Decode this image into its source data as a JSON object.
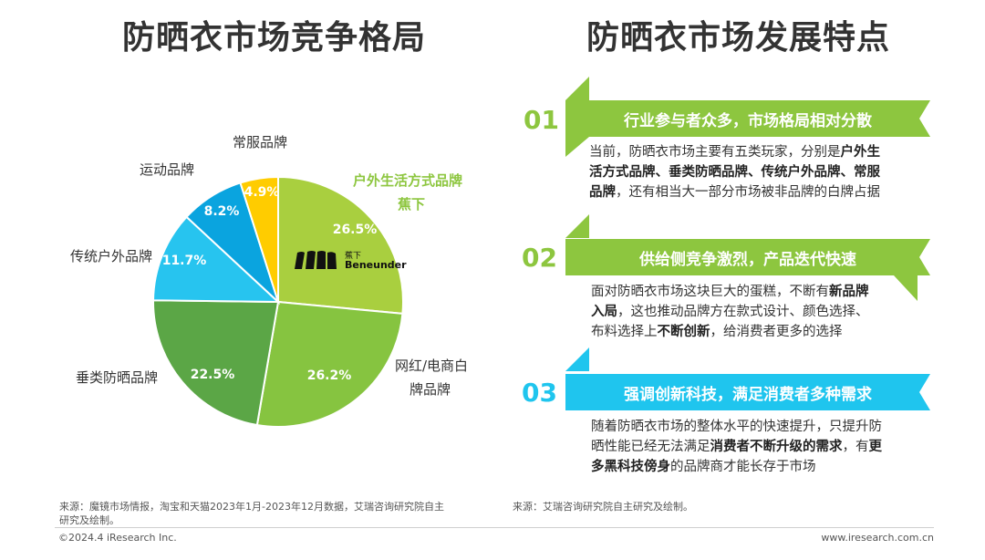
{
  "titles": {
    "left": "防晒衣市场竞争格局",
    "right": "防晒衣市场发展特点"
  },
  "chart_data": {
    "type": "pie",
    "slices": [
      {
        "label": "户外生活方式品牌",
        "value": 26.5,
        "pct": "26.5%",
        "color": "#a9cf3f"
      },
      {
        "label": "网红/电商白牌品牌",
        "value": 26.2,
        "pct": "26.2%",
        "color": "#86c440"
      },
      {
        "label": "垂类防晒品牌",
        "value": 22.5,
        "pct": "22.5%",
        "color": "#5ba646"
      },
      {
        "label": "传统户外品牌",
        "value": 11.7,
        "pct": "11.7%",
        "color": "#27c4ef"
      },
      {
        "label": "运动品牌",
        "value": 8.2,
        "pct": "8.2%",
        "color": "#0aa4df"
      },
      {
        "label": "常服品牌",
        "value": 4.9,
        "pct": "4.9%",
        "color": "#ffcc00"
      }
    ],
    "callout": {
      "line1": "户外生活方式品牌",
      "line2": "蕉下"
    },
    "label_lines": {
      "online_white_label": [
        "网红/电商白",
        "牌品牌"
      ]
    }
  },
  "logo": {
    "cn": "蕉下",
    "en": "Beneunder"
  },
  "features": [
    {
      "num": "01",
      "title": "行业参与者众多，市场格局相对分散",
      "lines": [
        [
          {
            "t": "当前，防晒衣市场主要有五类玩家，分别是"
          },
          {
            "t": "户外生",
            "b": true
          }
        ],
        [
          {
            "t": "活方式品牌、垂类防晒品牌、传统户外品牌、常服",
            "b": true
          }
        ],
        [
          {
            "t": "品牌",
            "b": true
          },
          {
            "t": "，还有相当大一部分市场被非品牌的白牌占据"
          }
        ]
      ]
    },
    {
      "num": "02",
      "title": "供给侧竞争激烈，产品迭代快速",
      "lines": [
        [
          {
            "t": "面对防晒衣市场这块巨大的蛋糕，不断有"
          },
          {
            "t": "新品牌",
            "b": true
          }
        ],
        [
          {
            "t": "入局",
            "b": true
          },
          {
            "t": "，这也推动品牌方在款式设计、颜色选择、"
          }
        ],
        [
          {
            "t": "布料选择上"
          },
          {
            "t": "不断创新",
            "b": true
          },
          {
            "t": "，给消费者更多的选择"
          }
        ]
      ]
    },
    {
      "num": "03",
      "title": "强调创新科技，满足消费者多种需求",
      "lines": [
        [
          {
            "t": "随着防晒衣市场的整体水平的快速提升，只提升防"
          }
        ],
        [
          {
            "t": "晒性能已经无法满足"
          },
          {
            "t": "消费者不断升级的需求",
            "b": true
          },
          {
            "t": "，有"
          },
          {
            "t": "更",
            "b": true
          }
        ],
        [
          {
            "t": "多黑科技傍身",
            "b": true
          },
          {
            "t": "的品牌商才能长存于市场"
          }
        ]
      ]
    }
  ],
  "source_left": [
    "来源：魔镜市场情报，淘宝和天猫2023年1月-2023年12月数据，艾瑞咨询研究院自主",
    "研究及绘制。"
  ],
  "source_right": "来源：艾瑞咨询研究院自主研究及绘制。",
  "footer_left": "©2024.4 iResearch Inc.",
  "footer_right": "www.iresearch.com.cn",
  "colors": {
    "green": "#8dc63f",
    "blue": "#1fc5ee",
    "number_green": "#8dc63f",
    "number_blue": "#1fc5ee"
  }
}
